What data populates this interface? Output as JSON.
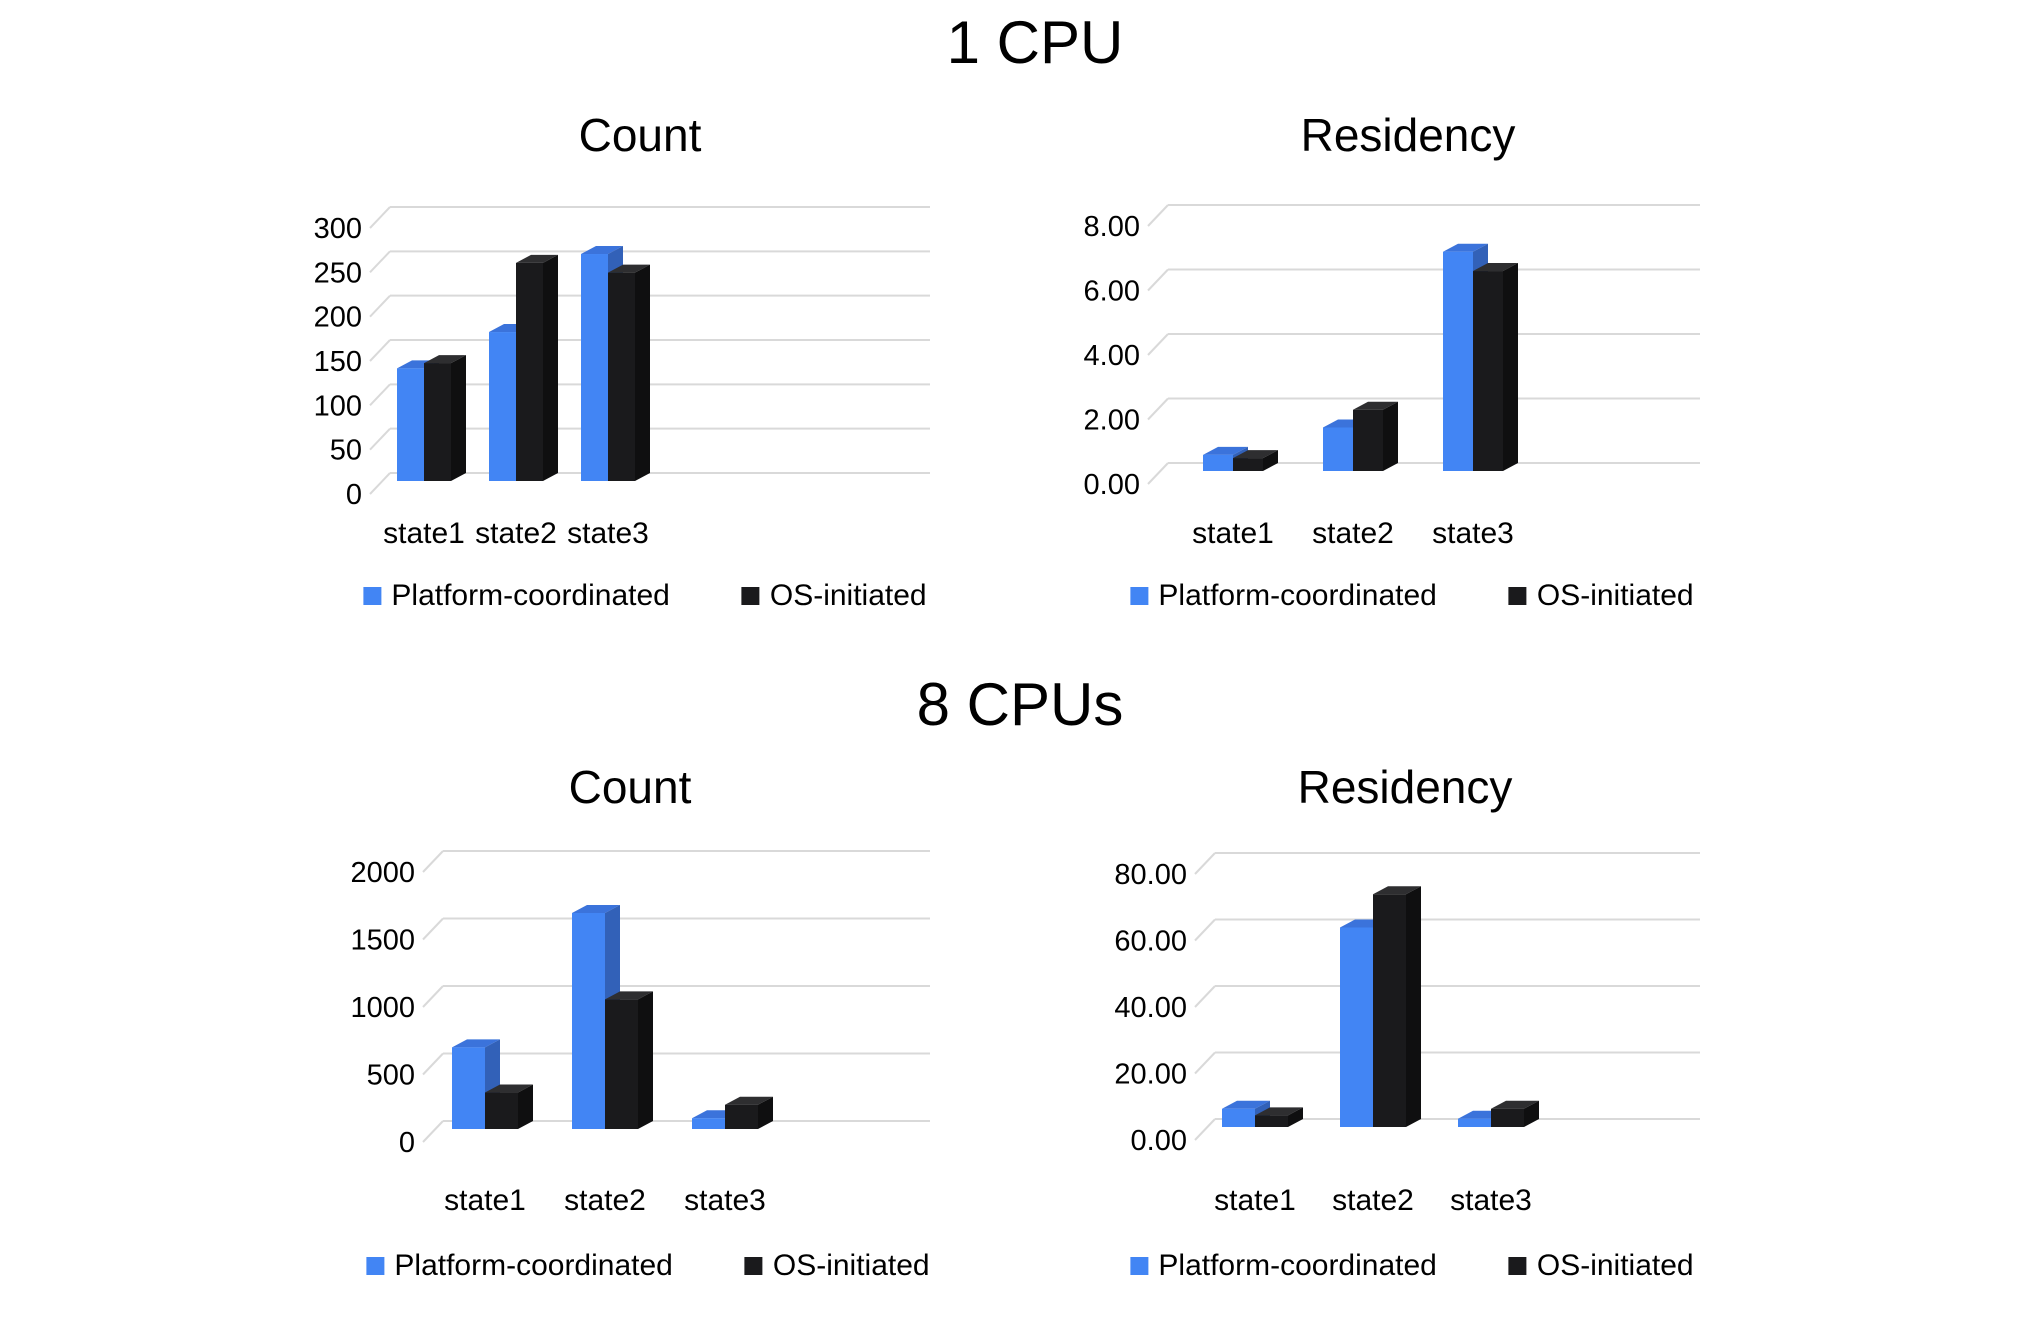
{
  "sections": [
    {
      "title": "1 CPU"
    },
    {
      "title": "8 CPUs"
    }
  ],
  "legend": {
    "platform": "Platform-coordinated",
    "os": "OS-initiated"
  },
  "colors": {
    "platform_front": "#4285F4",
    "platform_top": "#3B73DB",
    "platform_side": "#3261B8",
    "os_front": "#1A1A1C",
    "os_top": "#2E2E30",
    "os_side": "#0F0F10",
    "gridline": "#D9D9D9",
    "text": "#000000"
  },
  "chart_data": [
    {
      "id": "cpu1-count",
      "section": "1 CPU",
      "type": "bar",
      "title": "Count",
      "categories": [
        "state1",
        "state2",
        "state3"
      ],
      "series": [
        {
          "name": "Platform-coordinated",
          "values": [
            127,
            168,
            256
          ]
        },
        {
          "name": "OS-initiated",
          "values": [
            133,
            246,
            235
          ]
        }
      ],
      "xlabel": "",
      "ylabel": "",
      "ylim": [
        0,
        300
      ],
      "yticks": [
        0,
        50,
        100,
        150,
        200,
        250,
        300
      ],
      "ytick_labels": [
        "0",
        "50",
        "100",
        "150",
        "200",
        "250",
        "300"
      ],
      "grid": true,
      "legend_position": "bottom"
    },
    {
      "id": "cpu1-residency",
      "section": "1 CPU",
      "type": "bar",
      "title": "Residency",
      "categories": [
        "state1",
        "state2",
        "state3"
      ],
      "series": [
        {
          "name": "Platform-coordinated",
          "values": [
            0.5,
            1.35,
            6.8
          ]
        },
        {
          "name": "OS-initiated",
          "values": [
            0.4,
            1.9,
            6.2
          ]
        }
      ],
      "xlabel": "",
      "ylabel": "",
      "ylim": [
        0,
        8
      ],
      "yticks": [
        0,
        2,
        4,
        6,
        8
      ],
      "ytick_labels": [
        "0.00",
        "2.00",
        "4.00",
        "6.00",
        "8.00"
      ],
      "grid": true,
      "legend_position": "bottom"
    },
    {
      "id": "cpu8-count",
      "section": "8 CPUs",
      "type": "bar",
      "title": "Count",
      "categories": [
        "state1",
        "state2",
        "state3"
      ],
      "series": [
        {
          "name": "Platform-coordinated",
          "values": [
            605,
            1600,
            80
          ]
        },
        {
          "name": "OS-initiated",
          "values": [
            270,
            960,
            180
          ]
        }
      ],
      "xlabel": "",
      "ylabel": "",
      "ylim": [
        0,
        2000
      ],
      "yticks": [
        0,
        500,
        1000,
        1500,
        2000
      ],
      "ytick_labels": [
        "0",
        "500",
        "1000",
        "1500",
        "2000"
      ],
      "grid": true,
      "legend_position": "bottom"
    },
    {
      "id": "cpu8-residency",
      "section": "8 CPUs",
      "type": "bar",
      "title": "Residency",
      "categories": [
        "state1",
        "state2",
        "state3"
      ],
      "series": [
        {
          "name": "Platform-coordinated",
          "values": [
            5.5,
            60,
            2.5
          ]
        },
        {
          "name": "OS-initiated",
          "values": [
            3.5,
            70,
            5.5
          ]
        }
      ],
      "xlabel": "",
      "ylabel": "",
      "ylim": [
        0,
        80
      ],
      "yticks": [
        0,
        20,
        40,
        60,
        80
      ],
      "ytick_labels": [
        "0.00",
        "20.00",
        "40.00",
        "60.00",
        "80.00"
      ],
      "grid": true,
      "legend_position": "bottom"
    }
  ]
}
